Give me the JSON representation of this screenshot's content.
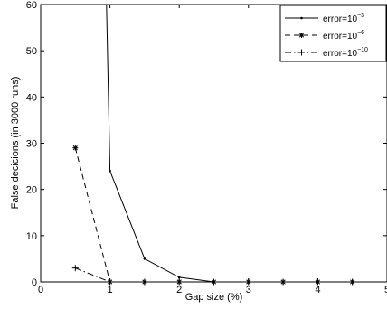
{
  "chart_data": {
    "type": "line",
    "xlabel": "Gap size (%)",
    "ylabel": "False decicions (in 3000 runs)",
    "xlim": [
      0,
      5
    ],
    "ylim": [
      0,
      60
    ],
    "xticks": [
      0,
      1,
      2,
      3,
      4,
      5
    ],
    "yticks": [
      0,
      10,
      20,
      30,
      40,
      50,
      60
    ],
    "grid": false,
    "legend_position": "top-right",
    "series": [
      {
        "legend_prefix": "error=10",
        "legend_exponent": "−3",
        "line_style": "solid",
        "marker": "dot",
        "x": [
          0.95,
          1.0,
          1.5,
          2.0,
          2.5,
          3.0,
          3.5,
          4.0,
          4.5
        ],
        "y": [
          60,
          24,
          5,
          1,
          0,
          0,
          0,
          0,
          0
        ]
      },
      {
        "legend_prefix": "error=10",
        "legend_exponent": "−6",
        "line_style": "dashed",
        "marker": "asterisk",
        "x": [
          0.5,
          1.0,
          1.5,
          2.0,
          2.5,
          3.0,
          3.5,
          4.0,
          4.5
        ],
        "y": [
          29,
          0,
          0,
          0,
          0,
          0,
          0,
          0,
          0
        ]
      },
      {
        "legend_prefix": "error=10",
        "legend_exponent": "−10",
        "line_style": "dashdot",
        "marker": "plus",
        "x": [
          0.5,
          1.0,
          1.5,
          2.0,
          2.5,
          3.0,
          3.5,
          4.0,
          4.5
        ],
        "y": [
          3,
          0,
          0,
          0,
          0,
          0,
          0,
          0,
          0
        ]
      }
    ]
  }
}
